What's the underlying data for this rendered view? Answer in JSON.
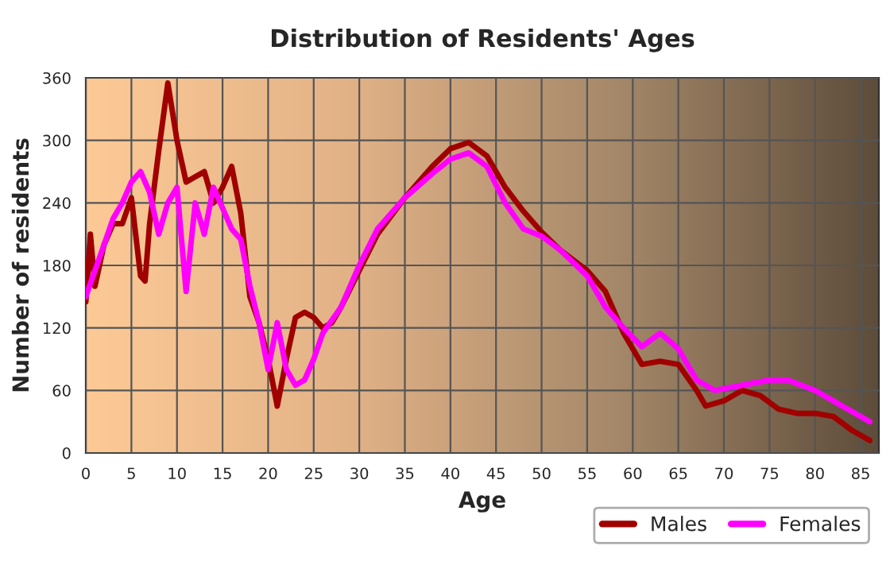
{
  "chart_data": {
    "type": "line",
    "title": "Distribution of Residents' Ages",
    "xlabel": "Age",
    "ylabel": "Number of residents",
    "xlim": [
      0,
      87
    ],
    "ylim": [
      0,
      360
    ],
    "xticks": [
      0,
      5,
      10,
      15,
      20,
      25,
      30,
      35,
      40,
      45,
      50,
      55,
      60,
      65,
      70,
      75,
      80,
      85
    ],
    "yticks": [
      0,
      60,
      120,
      180,
      240,
      300,
      360
    ],
    "grid": true,
    "legend": "bottom right",
    "series": [
      {
        "name": "Males",
        "color": "#a00000",
        "x": [
          0,
          0.5,
          1,
          2,
          3,
          4,
          5,
          6,
          6.5,
          7,
          8,
          9,
          10,
          11,
          12,
          13,
          14,
          15,
          16,
          17,
          18,
          19,
          20,
          21,
          22,
          23,
          24,
          25,
          26,
          27,
          28,
          30,
          32,
          35,
          38,
          40,
          42,
          44,
          46,
          48,
          50,
          52,
          55,
          57,
          59,
          61,
          63,
          65,
          67,
          68,
          70,
          72,
          74,
          76,
          78,
          80,
          82,
          84,
          86
        ],
        "values": [
          145,
          210,
          160,
          200,
          220,
          220,
          245,
          170,
          165,
          220,
          290,
          355,
          300,
          260,
          265,
          270,
          240,
          255,
          275,
          230,
          150,
          125,
          90,
          45,
          90,
          130,
          135,
          130,
          120,
          125,
          140,
          175,
          210,
          245,
          275,
          292,
          298,
          285,
          255,
          232,
          212,
          195,
          175,
          155,
          115,
          85,
          88,
          85,
          60,
          45,
          50,
          60,
          55,
          42,
          38,
          38,
          35,
          22,
          12
        ]
      },
      {
        "name": "Females",
        "color": "#ff00ff",
        "x": [
          0,
          1,
          2,
          3,
          4,
          5,
          6,
          7,
          8,
          9,
          10,
          11,
          12,
          13,
          14,
          15,
          16,
          17,
          18,
          19,
          20,
          21,
          22,
          23,
          24,
          25,
          26,
          28,
          30,
          32,
          35,
          38,
          40,
          42,
          44,
          46,
          48,
          50,
          52,
          55,
          57,
          59,
          61,
          63,
          65,
          67,
          69,
          72,
          75,
          77,
          80,
          83,
          86
        ],
        "values": [
          150,
          175,
          200,
          225,
          240,
          260,
          270,
          250,
          210,
          240,
          255,
          155,
          240,
          210,
          255,
          235,
          215,
          205,
          160,
          125,
          80,
          125,
          80,
          65,
          70,
          90,
          115,
          140,
          180,
          215,
          245,
          268,
          282,
          288,
          275,
          240,
          215,
          208,
          195,
          170,
          140,
          120,
          102,
          115,
          100,
          70,
          60,
          65,
          70,
          70,
          60,
          45,
          30
        ]
      }
    ]
  }
}
